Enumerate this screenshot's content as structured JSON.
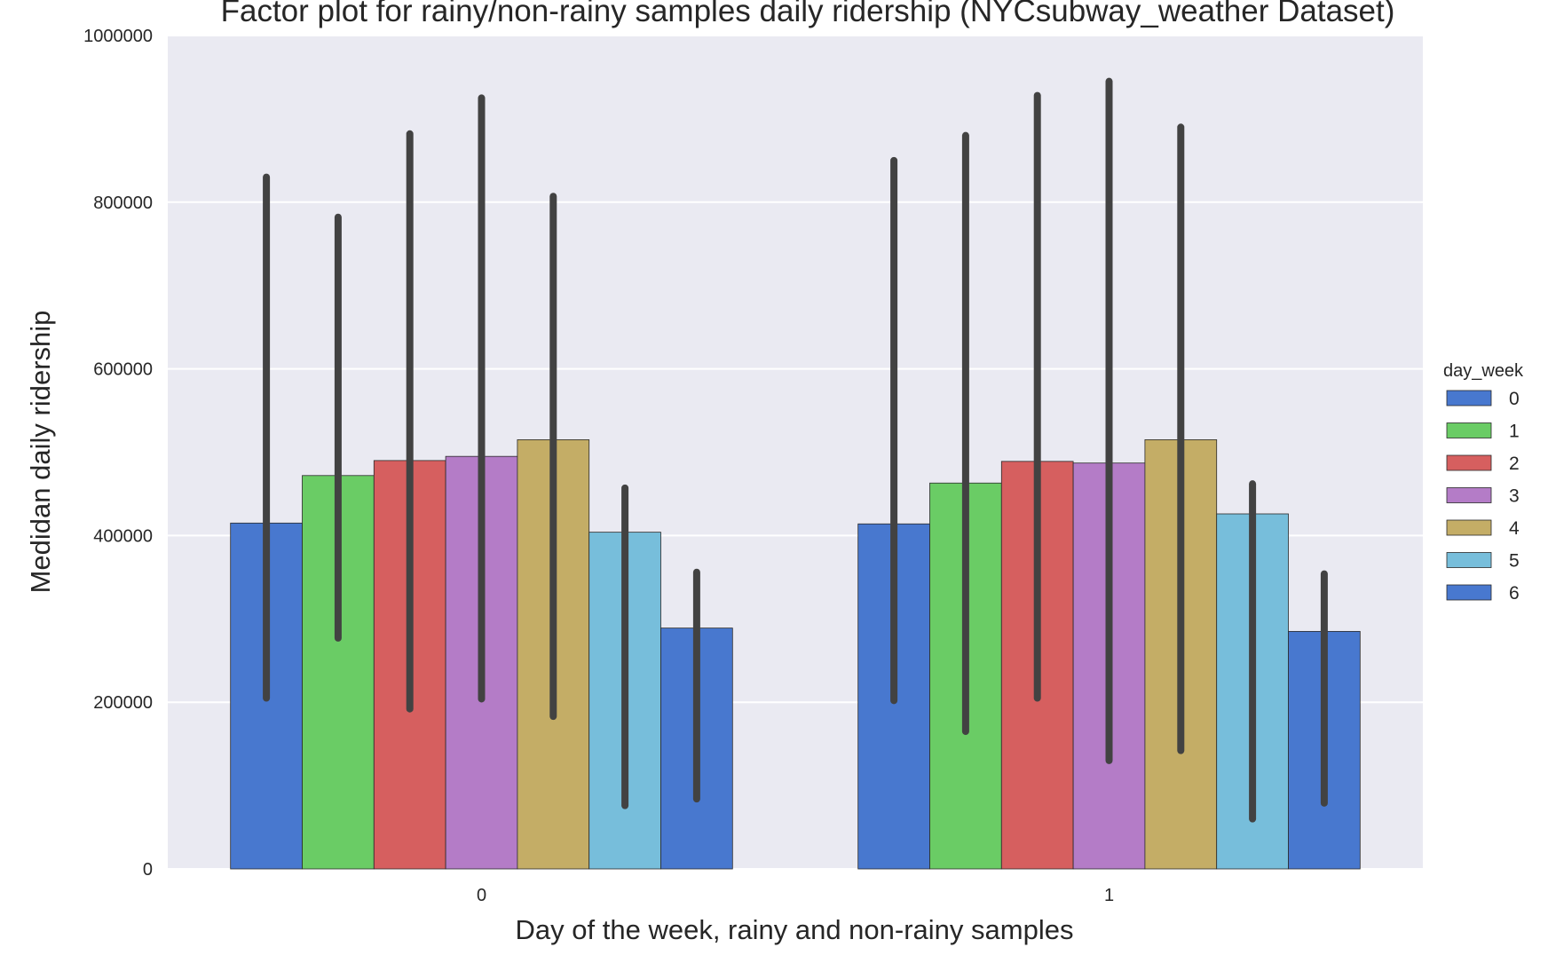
{
  "chart_data": {
    "type": "bar",
    "title": "Factor plot for rainy/non-rainy samples daily ridership (NYCsubway_weather Dataset)",
    "xlabel": "Day of the week, rainy and non-rainy samples",
    "ylabel": "Medidan daily ridership",
    "categories": [
      "0",
      "1"
    ],
    "ylim": [
      0,
      1000000
    ],
    "yticks": [
      "0",
      "200000",
      "400000",
      "600000",
      "800000",
      "1000000"
    ],
    "grid": true,
    "legend": {
      "title": "day_week",
      "placement": "right"
    },
    "series": [
      {
        "name": "0",
        "color": "#4878cf",
        "values": [
          415000,
          414000
        ],
        "ci": [
          [
            205000,
            830000
          ],
          [
            202000,
            850000
          ]
        ]
      },
      {
        "name": "1",
        "color": "#6acc65",
        "values": [
          472000,
          463000
        ],
        "ci": [
          [
            277000,
            782000
          ],
          [
            165000,
            880000
          ]
        ]
      },
      {
        "name": "2",
        "color": "#d65f5f",
        "values": [
          490000,
          489000
        ],
        "ci": [
          [
            192000,
            882000
          ],
          [
            205000,
            928000
          ]
        ]
      },
      {
        "name": "3",
        "color": "#b47cc7",
        "values": [
          495000,
          487000
        ],
        "ci": [
          [
            204000,
            925000
          ],
          [
            130000,
            945000
          ]
        ]
      },
      {
        "name": "4",
        "color": "#c4ad66",
        "values": [
          515000,
          515000
        ],
        "ci": [
          [
            183000,
            807000
          ],
          [
            142000,
            890000
          ]
        ]
      },
      {
        "name": "5",
        "color": "#77bedb",
        "values": [
          404000,
          426000
        ],
        "ci": [
          [
            76000,
            457000
          ],
          [
            60000,
            462000
          ]
        ]
      },
      {
        "name": "6",
        "color": "#4878cf",
        "values": [
          289000,
          285000
        ],
        "ci": [
          [
            84000,
            356000
          ],
          [
            79000,
            354000
          ]
        ]
      }
    ],
    "colors": {
      "plot_background": "#eaeaf2",
      "grid": "#ffffff",
      "error_bar": "#424242",
      "text": "#262626"
    }
  }
}
